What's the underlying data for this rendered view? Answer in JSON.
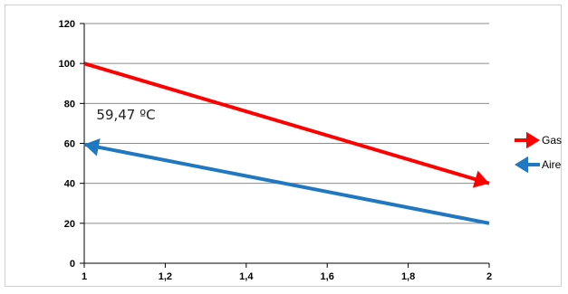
{
  "chart_data": {
    "type": "line",
    "title": "",
    "xlabel": "",
    "ylabel": "",
    "xlim": [
      1,
      2
    ],
    "ylim": [
      0,
      120
    ],
    "x_ticks": [
      "1",
      "1,2",
      "1,4",
      "1,6",
      "1,8",
      "2"
    ],
    "y_ticks": [
      "0",
      "20",
      "40",
      "60",
      "80",
      "100",
      "120"
    ],
    "grid": "horizontal",
    "legend_position": "right",
    "series": [
      {
        "name": "Gas",
        "color": "#ff0000",
        "arrow": "to-end",
        "x": [
          1,
          2
        ],
        "y": [
          100,
          40
        ]
      },
      {
        "name": "Aire",
        "color": "#1f78c1",
        "arrow": "to-start",
        "x": [
          1,
          2
        ],
        "y": [
          59.47,
          20
        ]
      }
    ],
    "annotations": [
      {
        "text": "59,47 ºC",
        "x": 1.03,
        "y": 72
      }
    ]
  }
}
